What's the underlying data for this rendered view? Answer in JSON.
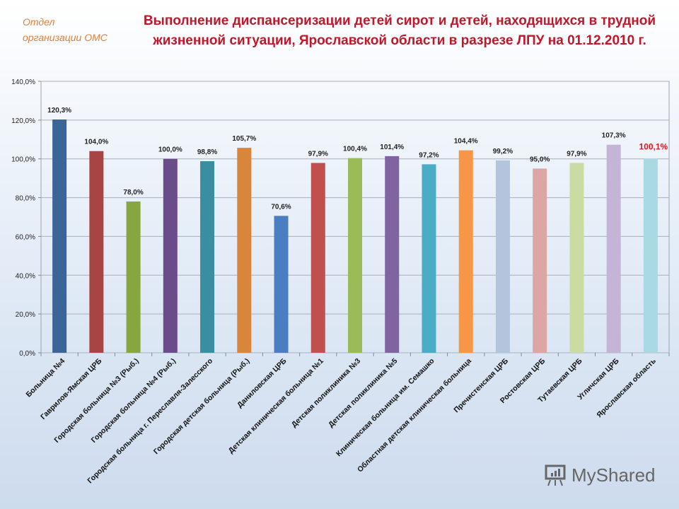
{
  "header": {
    "org": [
      "Отдел",
      "организации ОМС"
    ],
    "title": "Выполнение диспансеризации детей сирот и детей, находящихся в трудной жизненной ситуации, Ярославской области в разрезе ЛПУ на 01.12.2010 г."
  },
  "watermark": "MyShared",
  "chart_data": {
    "type": "bar",
    "title": "Выполнение диспансеризации детей сирот и детей, находящихся в трудной жизненной ситуации, Ярославской области в разрезе ЛПУ на 01.12.2010 г.",
    "categories": [
      "Больница №4",
      "Гаврилов-Ямская  ЦРБ",
      "Городская больница №3 (Рыб.)",
      "Городская больница  №4 (Рыб.)",
      "Городская больница  г. Переславля-Залесского",
      "Городская детская больница  (Рыб.)",
      "Даниловская  ЦРБ",
      "Детская клиническая  больница №1",
      "Детская поликлиника  №3",
      "Детская поликлиника  №5",
      "Клиническая  больница  им. Семашко",
      "Областная  детская клиническая  больница",
      "Пречистенская  ЦРБ",
      "Ростовская  ЦРБ",
      "Тутаевская  ЦРБ",
      "Угличская ЦРБ",
      "Ярославская  область"
    ],
    "values": [
      120.3,
      104.0,
      78.0,
      100.0,
      98.8,
      105.7,
      70.6,
      97.9,
      100.4,
      101.4,
      97.2,
      104.4,
      99.2,
      95.0,
      97.9,
      107.3,
      100.1
    ],
    "data_labels": [
      "120,3%",
      "104,0%",
      "78,0%",
      "100,0%",
      "98,8%",
      "105,7%",
      "70,6%",
      "97,9%",
      "100,4%",
      "101,4%",
      "97,2%",
      "104,4%",
      "99,2%",
      "95,0%",
      "97,9%",
      "107,3%",
      "100,1%"
    ],
    "colors": [
      "#3b6497",
      "#a84443",
      "#87a640",
      "#6a4c8a",
      "#3a8e9f",
      "#d9853b",
      "#4a7ec0",
      "#c0504d",
      "#9bbb59",
      "#8064a2",
      "#4bacc6",
      "#f79646",
      "#b4c4dc",
      "#dca6a5",
      "#cbdca3",
      "#c4b5d6",
      "#a9d9e3"
    ],
    "highlight_label_color": "#e0191e",
    "yticks": [
      "0,0%",
      "20,0%",
      "40,0%",
      "60,0%",
      "80,0%",
      "100,0%",
      "120,0%",
      "140,0%"
    ],
    "ylim": [
      0,
      140
    ],
    "grid": true,
    "legend": "none"
  }
}
